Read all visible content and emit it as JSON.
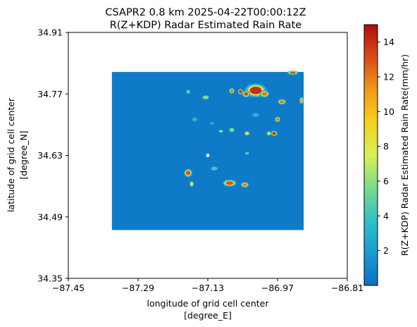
{
  "chart_data": {
    "type": "heatmap",
    "title_line1": "CSAPR2 0.8 km 2025-04-22T00:00:12Z",
    "title_line2": "R(Z+KDP) Radar Estimated Rain Rate",
    "xlabel_line1": "longitude of grid cell center",
    "xlabel_line2": "[degree_E]",
    "ylabel_line1": "latitude of grid cell center",
    "ylabel_line2": "[degree_N]",
    "xlim": [
      -87.45,
      -86.81
    ],
    "ylim": [
      34.35,
      34.91
    ],
    "x_ticks": [
      {
        "value": -87.45,
        "label": "−87.45"
      },
      {
        "value": -87.29,
        "label": "−87.29"
      },
      {
        "value": -87.13,
        "label": "−87.13"
      },
      {
        "value": -86.97,
        "label": "−86.97"
      },
      {
        "value": -86.81,
        "label": "−86.81"
      }
    ],
    "y_ticks": [
      {
        "value": 34.35,
        "label": "34.35"
      },
      {
        "value": 34.49,
        "label": "34.49"
      },
      {
        "value": 34.63,
        "label": "34.63"
      },
      {
        "value": 34.77,
        "label": "34.77"
      },
      {
        "value": 34.91,
        "label": "34.91"
      }
    ],
    "data_extent": {
      "lon": [
        -87.35,
        -86.91
      ],
      "lat": [
        34.46,
        34.82
      ]
    },
    "background_value": 0.5,
    "radar_site": {
      "lon": -87.13,
      "lat": 34.63
    },
    "rain_cells": [
      {
        "lon": -87.02,
        "lat": 34.778,
        "rx": 0.016,
        "ry": 0.01,
        "value": 14
      },
      {
        "lon": -87.042,
        "lat": 34.77,
        "rx": 0.006,
        "ry": 0.005,
        "value": 13
      },
      {
        "lon": -87.0,
        "lat": 34.77,
        "rx": 0.007,
        "ry": 0.005,
        "value": 12
      },
      {
        "lon": -87.055,
        "lat": 34.775,
        "rx": 0.004,
        "ry": 0.004,
        "value": 14
      },
      {
        "lon": -86.96,
        "lat": 34.752,
        "rx": 0.006,
        "ry": 0.004,
        "value": 12
      },
      {
        "lon": -86.915,
        "lat": 34.755,
        "rx": 0.003,
        "ry": 0.005,
        "value": 11
      },
      {
        "lon": -86.935,
        "lat": 34.818,
        "rx": 0.008,
        "ry": 0.003,
        "value": 13
      },
      {
        "lon": -86.97,
        "lat": 34.712,
        "rx": 0.004,
        "ry": 0.004,
        "value": 12
      },
      {
        "lon": -86.978,
        "lat": 34.68,
        "rx": 0.005,
        "ry": 0.004,
        "value": 14
      },
      {
        "lon": -86.99,
        "lat": 34.68,
        "rx": 0.003,
        "ry": 0.003,
        "value": 8
      },
      {
        "lon": -87.04,
        "lat": 34.68,
        "rx": 0.004,
        "ry": 0.003,
        "value": 9
      },
      {
        "lon": -87.075,
        "lat": 34.688,
        "rx": 0.004,
        "ry": 0.003,
        "value": 6
      },
      {
        "lon": -87.1,
        "lat": 34.685,
        "rx": 0.003,
        "ry": 0.002,
        "value": 7
      },
      {
        "lon": -87.135,
        "lat": 34.762,
        "rx": 0.005,
        "ry": 0.003,
        "value": 6
      },
      {
        "lon": -87.175,
        "lat": 34.775,
        "rx": 0.003,
        "ry": 0.003,
        "value": 5
      },
      {
        "lon": -87.075,
        "lat": 34.777,
        "rx": 0.004,
        "ry": 0.004,
        "value": 12
      },
      {
        "lon": -87.04,
        "lat": 34.635,
        "rx": 0.003,
        "ry": 0.002,
        "value": 5
      },
      {
        "lon": -87.175,
        "lat": 34.59,
        "rx": 0.006,
        "ry": 0.006,
        "value": 13
      },
      {
        "lon": -87.167,
        "lat": 34.565,
        "rx": 0.003,
        "ry": 0.004,
        "value": 8
      },
      {
        "lon": -87.08,
        "lat": 34.567,
        "rx": 0.01,
        "ry": 0.005,
        "value": 13
      },
      {
        "lon": -87.045,
        "lat": 34.563,
        "rx": 0.006,
        "ry": 0.004,
        "value": 12
      },
      {
        "lon": -87.115,
        "lat": 34.6,
        "rx": 0.005,
        "ry": 0.003,
        "value": 4
      },
      {
        "lon": -87.16,
        "lat": 34.712,
        "rx": 0.004,
        "ry": 0.003,
        "value": 3
      },
      {
        "lon": -87.02,
        "lat": 34.722,
        "rx": 0.005,
        "ry": 0.003,
        "value": 3
      },
      {
        "lon": -87.12,
        "lat": 34.703,
        "rx": 0.003,
        "ry": 0.002,
        "value": 3
      }
    ],
    "colorbar": {
      "label": "R(Z+KDP) Radar Estimated Rain Rate(mm/hr)",
      "range": [
        0,
        15
      ],
      "ticks": [
        {
          "value": 2,
          "label": "2"
        },
        {
          "value": 4,
          "label": "4"
        },
        {
          "value": 6,
          "label": "6"
        },
        {
          "value": 8,
          "label": "8"
        },
        {
          "value": 10,
          "label": "10"
        },
        {
          "value": 12,
          "label": "12"
        },
        {
          "value": 14,
          "label": "14"
        }
      ],
      "colormap": [
        "#0b6fc4",
        "#1a9bd2",
        "#2fc1c7",
        "#7bdc8a",
        "#d8f056",
        "#f5d21e",
        "#ef9a1a",
        "#d94b17",
        "#b00b0b"
      ]
    }
  }
}
